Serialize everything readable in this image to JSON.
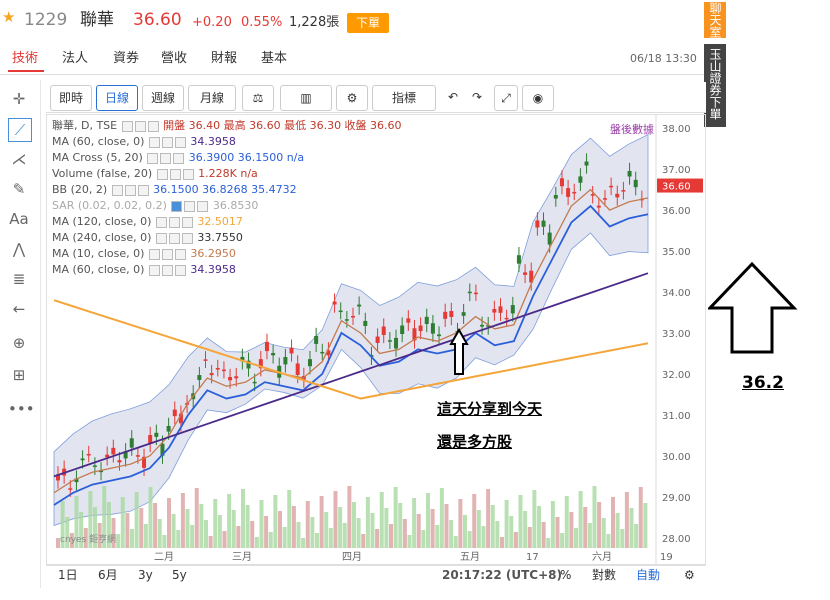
{
  "header": {
    "code": "1229",
    "name": "聯華",
    "price": "36.60",
    "change": "+0.20",
    "change_pct": "0.55%",
    "volume": "1,228張",
    "order_button": "下單",
    "datetime": "06/18 13:30"
  },
  "tabs": [
    "技術",
    "法人",
    "資券",
    "營收",
    "財報",
    "基本"
  ],
  "side_badges": {
    "chat": "聊天室",
    "broker": "玉山證券下單"
  },
  "toolbar": {
    "buttons": [
      "即時",
      "日線",
      "週線",
      "月線",
      "⚖",
      "▥",
      "⚙",
      "指標"
    ],
    "active_index": 1
  },
  "legend": [
    {
      "label": "聯華, D, TSE",
      "values": "開盤 36.40 最高 36.60 最低 36.30 收盤 36.60"
    },
    {
      "label": "MA (60, close, 0)",
      "values": "34.3958"
    },
    {
      "label": "MA Cross (5, 20)",
      "values": "36.3900 36.1500 n/a"
    },
    {
      "label": "Volume (false, 20)",
      "values": "1.228K n/a"
    },
    {
      "label": "BB (20, 2)",
      "values": "36.1500 36.8268 35.4732"
    },
    {
      "label": "SAR (0.02, 0.02, 0.2)",
      "values": "36.8530"
    },
    {
      "label": "MA (120, close, 0)",
      "values": "32.5017"
    },
    {
      "label": "MA (240, close, 0)",
      "values": "33.7550"
    },
    {
      "label": "MA (10, close, 0)",
      "values": "36.2950"
    },
    {
      "label": "MA (60, close, 0)",
      "values": "34.3958"
    }
  ],
  "after_hours": "盤後數據",
  "y_ticks": [
    "38.00",
    "37.00",
    "36.00",
    "35.00",
    "34.00",
    "33.00",
    "32.00",
    "31.00",
    "30.00",
    "29.00",
    "28.00"
  ],
  "price_tag": "36.60",
  "x_ticks": [
    "二月",
    "三月",
    "四月",
    "五月",
    "17",
    "六月",
    "19"
  ],
  "watermark": "cnyes 鉅亨網",
  "bottom": {
    "ranges": [
      "1日",
      "6月",
      "3y",
      "5y"
    ],
    "time": "20:17:22 (UTC+8)",
    "pct": "%",
    "log": "對數",
    "auto": "自動"
  },
  "annotation": {
    "line1": "這天分享到今天",
    "line2": "還是多方股",
    "target_price": "36.2"
  },
  "colors": {
    "up": "#e53935",
    "down": "#2e7d32",
    "bb_fill": "#dde1ee",
    "bb_line": "#6b8ed6",
    "ma_blue": "#2b5fd9",
    "ma_brown": "#c47a4e",
    "ma_purple": "#4b2a8a",
    "ma_orange": "#f4a63a",
    "accent": "#ff9900"
  },
  "chart_data": {
    "type": "candlestick",
    "title": "聯華, D, TSE",
    "y_range": [
      27.8,
      38.2
    ],
    "x_labels": [
      "二月",
      "三月",
      "四月",
      "五月",
      "17",
      "六月",
      "19"
    ],
    "close_series_approx": [
      29.4,
      29.7,
      29.9,
      30.0,
      30.1,
      30.3,
      30.8,
      31.6,
      32.2,
      32.0,
      32.1,
      32.4,
      32.3,
      32.2,
      32.6,
      33.6,
      33.3,
      32.8,
      32.9,
      33.2,
      33.1,
      33.3,
      33.7,
      33.4,
      33.5,
      34.6,
      35.5,
      36.4,
      36.8,
      36.3,
      36.5,
      36.6
    ],
    "current_close": 36.6,
    "open": 36.4,
    "high": 36.6,
    "low": 36.3
  }
}
